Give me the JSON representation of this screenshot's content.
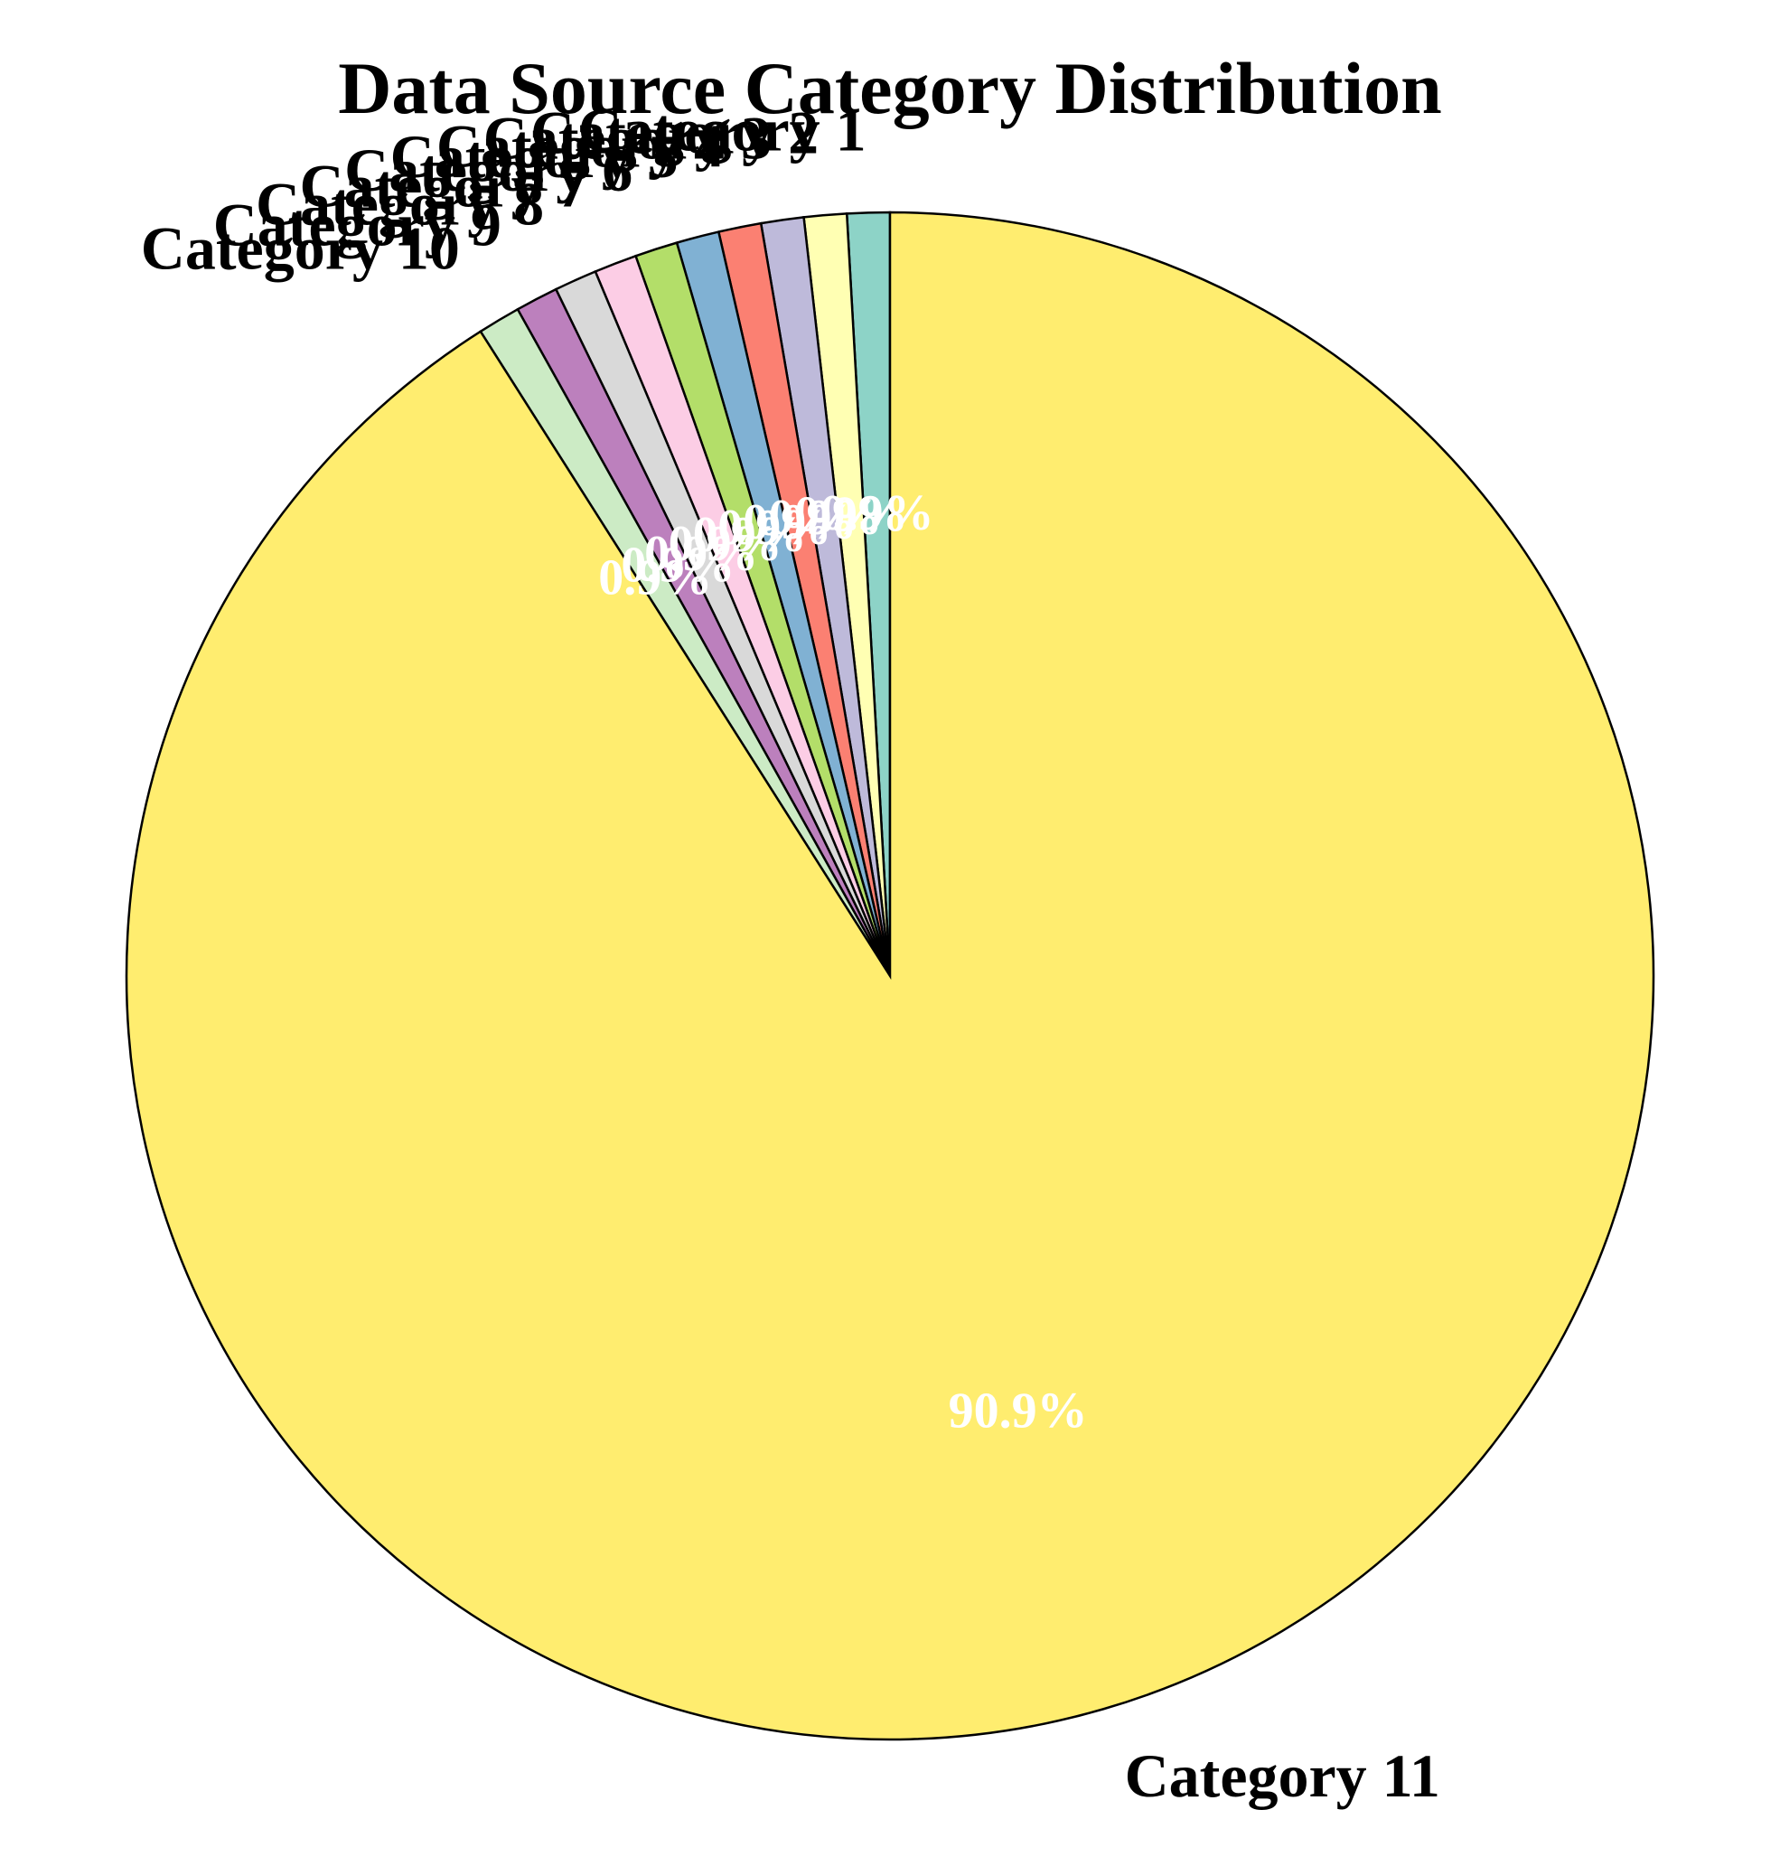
{
  "chart_data": {
    "type": "pie",
    "title": "Data Source Category Distribution",
    "start_angle_deg": 90,
    "direction": "counterclockwise",
    "label_position": "outside",
    "percent_label_position": "inside",
    "slices": [
      {
        "label": "Category 1",
        "value": 0.9,
        "pct_text": "0.9%",
        "color": "#8dd3c7"
      },
      {
        "label": "Category 2",
        "value": 0.9,
        "pct_text": "0.9%",
        "color": "#ffffb3"
      },
      {
        "label": "Category 3",
        "value": 0.9,
        "pct_text": "0.9%",
        "color": "#bebada"
      },
      {
        "label": "Category 4",
        "value": 0.9,
        "pct_text": "0.9%",
        "color": "#fb8072"
      },
      {
        "label": "Category 5",
        "value": 0.9,
        "pct_text": "0.9%",
        "color": "#80b1d3"
      },
      {
        "label": "Category 6",
        "value": 0.9,
        "pct_text": "0.9%",
        "color": "#b3de69"
      },
      {
        "label": "Category 7",
        "value": 0.9,
        "pct_text": "0.9%",
        "color": "#fccde5"
      },
      {
        "label": "Category 8",
        "value": 0.9,
        "pct_text": "0.9%",
        "color": "#d9d9d9"
      },
      {
        "label": "Category 9",
        "value": 0.9,
        "pct_text": "0.9%",
        "color": "#bc80bd"
      },
      {
        "label": "Category 10",
        "value": 0.9,
        "pct_text": "0.9%",
        "color": "#ccebc5"
      },
      {
        "label": "Category 11",
        "value": 90.9,
        "pct_text": "90.9%",
        "color": "#ffed6f"
      }
    ]
  }
}
